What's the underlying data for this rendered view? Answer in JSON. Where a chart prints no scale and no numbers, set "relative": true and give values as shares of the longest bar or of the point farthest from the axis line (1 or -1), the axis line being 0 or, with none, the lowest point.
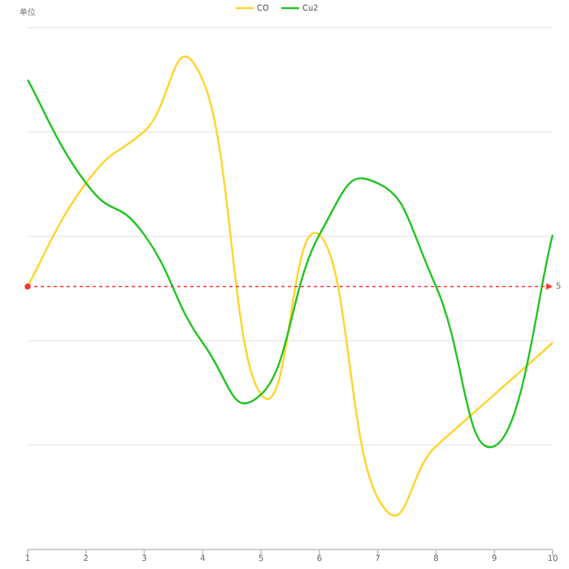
{
  "chart_data": {
    "type": "line",
    "relative": true,
    "legend": "top",
    "grid": "y",
    "tick_labels": "x",
    "marker": "none",
    "categories": [
      "1",
      "2",
      "3",
      "4",
      "5",
      "6",
      "7",
      "8",
      "9",
      "10"
    ],
    "series": [
      {
        "name": "CO",
        "color": "#ffd42a",
        "values": [
          0.56,
          0.78,
          0.89,
          1.0,
          0.33,
          0.67,
          0.11,
          0.22,
          0.33,
          0.44
        ]
      },
      {
        "name": "Cu2",
        "color": "#22c322",
        "values": [
          1.0,
          0.78,
          0.67,
          0.44,
          0.33,
          0.67,
          0.78,
          0.56,
          0.22,
          0.67
        ]
      }
    ],
    "ref_lines": [
      {
        "axis": "y",
        "value": 0.56,
        "color": "#ff3333",
        "line_style": "dotted"
      }
    ],
    "annotations": [
      "单位",
      {
        "text": "5",
        "x": "10",
        "y": 0.56
      }
    ]
  }
}
